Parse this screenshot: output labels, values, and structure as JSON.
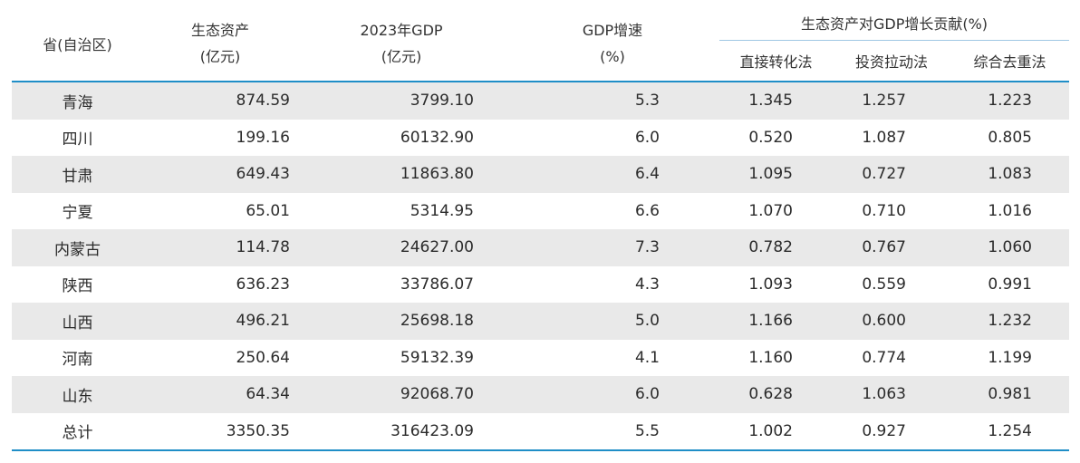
{
  "headers": {
    "province": "省(自治区)",
    "eco_assets_line1": "生态资产",
    "eco_assets_line2": "(亿元)",
    "gdp2023_line1": "2023年GDP",
    "gdp2023_line2": "(亿元)",
    "gdp_growth_line1": "GDP增速",
    "gdp_growth_line2": "(%)",
    "contribution_group": "生态资产对GDP增长贡献(%)",
    "direct_method": "直接转化法",
    "investment_method": "投资拉动法",
    "comprehensive_method": "综合去重法"
  },
  "rows": [
    {
      "province": "青海",
      "eco_assets": "874.59",
      "gdp2023": "3799.10",
      "gdp_growth": "5.3",
      "direct": "1.345",
      "investment": "1.257",
      "comprehensive": "1.223"
    },
    {
      "province": "四川",
      "eco_assets": "199.16",
      "gdp2023": "60132.90",
      "gdp_growth": "6.0",
      "direct": "0.520",
      "investment": "1.087",
      "comprehensive": "0.805"
    },
    {
      "province": "甘肃",
      "eco_assets": "649.43",
      "gdp2023": "11863.80",
      "gdp_growth": "6.4",
      "direct": "1.095",
      "investment": "0.727",
      "comprehensive": "1.083"
    },
    {
      "province": "宁夏",
      "eco_assets": "65.01",
      "gdp2023": "5314.95",
      "gdp_growth": "6.6",
      "direct": "1.070",
      "investment": "0.710",
      "comprehensive": "1.016"
    },
    {
      "province": "内蒙古",
      "eco_assets": "114.78",
      "gdp2023": "24627.00",
      "gdp_growth": "7.3",
      "direct": "0.782",
      "investment": "0.767",
      "comprehensive": "1.060"
    },
    {
      "province": "陕西",
      "eco_assets": "636.23",
      "gdp2023": "33786.07",
      "gdp_growth": "4.3",
      "direct": "1.093",
      "investment": "0.559",
      "comprehensive": "0.991"
    },
    {
      "province": "山西",
      "eco_assets": "496.21",
      "gdp2023": "25698.18",
      "gdp_growth": "5.0",
      "direct": "1.166",
      "investment": "0.600",
      "comprehensive": "1.232"
    },
    {
      "province": "河南",
      "eco_assets": "250.64",
      "gdp2023": "59132.39",
      "gdp_growth": "4.1",
      "direct": "1.160",
      "investment": "0.774",
      "comprehensive": "1.199"
    },
    {
      "province": "山东",
      "eco_assets": "64.34",
      "gdp2023": "92068.70",
      "gdp_growth": "6.0",
      "direct": "0.628",
      "investment": "1.063",
      "comprehensive": "0.981"
    },
    {
      "province": "总计",
      "eco_assets": "3350.35",
      "gdp2023": "316423.09",
      "gdp_growth": "5.5",
      "direct": "1.002",
      "investment": "0.927",
      "comprehensive": "1.254"
    }
  ],
  "colors": {
    "rule_blue": "#1f8ec7",
    "stripe_gray": "#e9e9e9",
    "text": "#2b2b2b"
  }
}
